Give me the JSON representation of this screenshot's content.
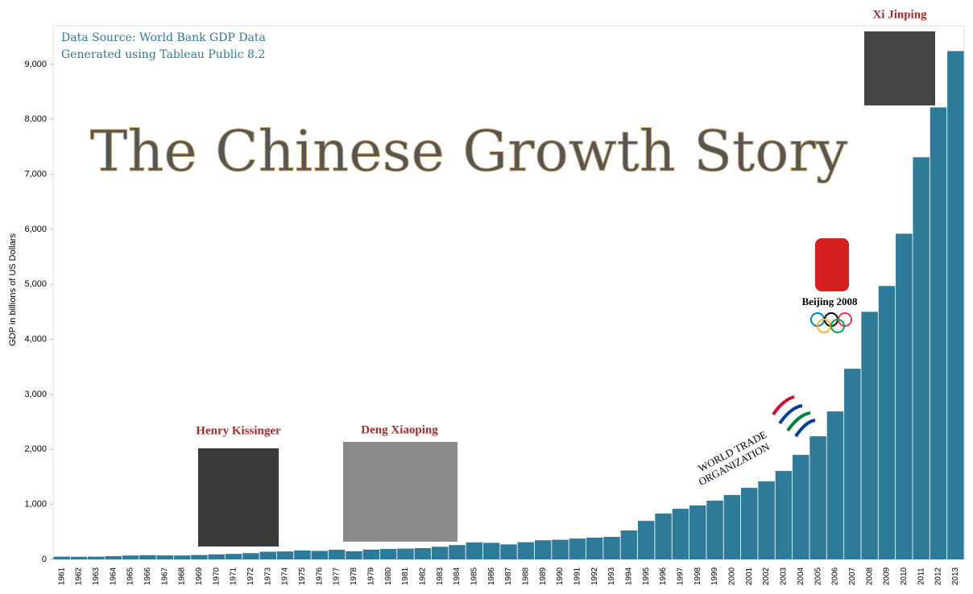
{
  "chart_data": {
    "type": "bar",
    "title": "The Chinese Growth Story",
    "source_lines": [
      "Data Source: World Bank GDP Data",
      "Generated using Tableau Public 8.2"
    ],
    "y_label": "GDP in billions of US Dollars",
    "color": "#2e7b99",
    "categories": [
      "1961",
      "1962",
      "1963",
      "1964",
      "1965",
      "1966",
      "1967",
      "1968",
      "1969",
      "1970",
      "1971",
      "1972",
      "1973",
      "1974",
      "1975",
      "1976",
      "1977",
      "1978",
      "1979",
      "1980",
      "1981",
      "1982",
      "1983",
      "1984",
      "1985",
      "1986",
      "1987",
      "1988",
      "1989",
      "1990",
      "1991",
      "1992",
      "1993",
      "1994",
      "1995",
      "1996",
      "1997",
      "1998",
      "1999",
      "2000",
      "2001",
      "2002",
      "2003",
      "2004",
      "2005",
      "2006",
      "2007",
      "2008",
      "2009",
      "2010",
      "2011",
      "2012",
      "2013"
    ],
    "values": [
      50,
      47,
      50,
      59,
      70,
      76,
      72,
      70,
      79,
      92,
      100,
      114,
      139,
      144,
      163,
      154,
      175,
      149,
      178,
      191,
      196,
      205,
      230,
      260,
      309,
      301,
      273,
      312,
      348,
      357,
      379,
      395,
      409,
      526,
      700,
      833,
      920,
      980,
      1067,
      1170,
      1300,
      1418,
      1608,
      1900,
      2237,
      2690,
      3465,
      4500,
      4970,
      5920,
      7310,
      8216,
      9240
    ],
    "ylim": [
      0,
      9700
    ],
    "yticks": [
      0,
      {
        "value": 1000,
        "label": "1,000"
      },
      {
        "value": 2000,
        "label": "2,000"
      },
      {
        "value": 3000,
        "label": "3,000"
      },
      {
        "value": 4000,
        "label": "4,000"
      },
      {
        "value": 5000,
        "label": "5,000"
      },
      {
        "value": 6000,
        "label": "6,000"
      },
      {
        "value": 7000,
        "label": "7,000"
      },
      {
        "value": 8000,
        "label": "8,000"
      },
      {
        "value": 9000,
        "label": "9,000"
      }
    ],
    "annotations": [
      "Henry Kissinger",
      "Deng Xiaoping",
      "Xi Jinping",
      "Beijing 2008",
      "WORLD TRADE",
      "ORGANIZATION"
    ]
  }
}
